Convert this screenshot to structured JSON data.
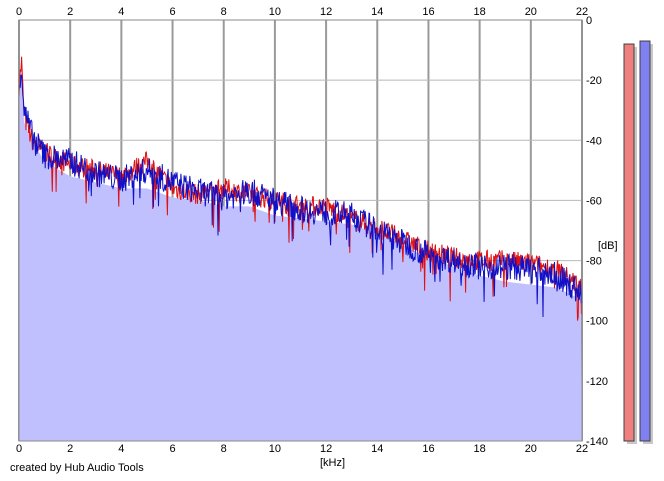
{
  "credit": "created by Hub Audio Tools",
  "chart_data": {
    "type": "line",
    "xlabel": "[kHz]",
    "ylabel": "[dB]",
    "xlim": [
      0,
      22
    ],
    "ylim": [
      -140,
      0
    ],
    "x_ticks": [
      0,
      2,
      4,
      6,
      8,
      10,
      12,
      14,
      16,
      18,
      20,
      22
    ],
    "y_ticks": [
      0,
      -20,
      -40,
      -60,
      -80,
      -100,
      -120,
      -140
    ],
    "x_tick_labels": [
      "0",
      "2",
      "4",
      "6",
      "8",
      "10",
      "12",
      "14",
      "16",
      "18",
      "20",
      "22"
    ],
    "y_tick_labels": [
      "0",
      "-20",
      "-40",
      "-60",
      "-80",
      "-100",
      "-120",
      "-140"
    ],
    "grid": true,
    "x": [
      0,
      0.1,
      0.2,
      0.5,
      1,
      2,
      3,
      4,
      5,
      6,
      7,
      8,
      9,
      10,
      11,
      12,
      13,
      14,
      15,
      16,
      17,
      18,
      19,
      20,
      21,
      22
    ],
    "series": [
      {
        "name": "",
        "color": "#e01010",
        "values": [
          -22,
          -14,
          -32,
          -40,
          -44,
          -48,
          -50,
          -52,
          -47,
          -56,
          -58,
          -56,
          -58,
          -60,
          -62,
          -62,
          -66,
          -69,
          -73,
          -77,
          -79,
          -80,
          -80,
          -81,
          -83,
          -89
        ]
      },
      {
        "name": "",
        "color": "#1010c8",
        "values": [
          -21,
          -16,
          -30,
          -38,
          -45,
          -47,
          -51,
          -53,
          -50,
          -54,
          -57,
          -59,
          -57,
          -60,
          -63,
          -64,
          -65,
          -70,
          -74,
          -78,
          -80,
          -82,
          -82,
          -83,
          -85,
          -91
        ]
      }
    ],
    "fill_series": {
      "color": "#c0c0ff",
      "values": [
        -22,
        -16,
        -34,
        -40,
        -47,
        -52,
        -54,
        -56,
        -56,
        -59,
        -60,
        -62,
        -62,
        -65,
        -66,
        -67,
        -68,
        -71,
        -75,
        -79,
        -82,
        -85,
        -87,
        -88,
        -89,
        -93
      ]
    },
    "level_meters": [
      {
        "color": "#f08080",
        "level_db": -4
      },
      {
        "color": "#8080f0",
        "level_db": -3
      }
    ]
  }
}
